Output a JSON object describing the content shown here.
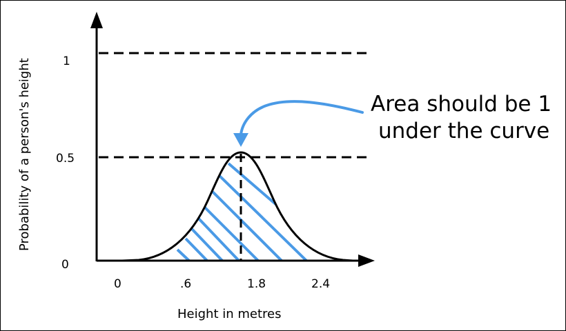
{
  "axes": {
    "y_label": "Probability of a person's height",
    "x_label": "Height in metres",
    "y_ticks": [
      "1",
      "0.5",
      "0"
    ],
    "x_ticks": [
      "0",
      ".6",
      "1.8",
      "2.4"
    ]
  },
  "annotation": {
    "line1": "Area should be 1",
    "line2": "under the curve"
  },
  "colors": {
    "accent": "#4a9ae6",
    "ink": "#000000"
  }
}
